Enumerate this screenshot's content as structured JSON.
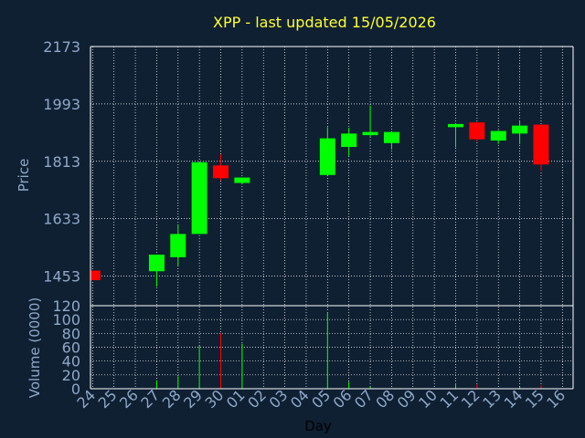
{
  "chart_data": {
    "type": "candlestick",
    "title": "XPP - last updated 15/05/2026",
    "xlabel": "Day",
    "ylabel": "Price",
    "volume_label": "Volume (0000)",
    "categories": [
      "24",
      "25",
      "26",
      "27",
      "28",
      "29",
      "30",
      "01",
      "02",
      "03",
      "04",
      "05",
      "06",
      "07",
      "08",
      "09",
      "10",
      "11",
      "12",
      "13",
      "14",
      "15",
      "16"
    ],
    "price_ticks": [
      "2173",
      "1993",
      "1813",
      "1633",
      "1453"
    ],
    "price_tick_values": [
      2173,
      1993,
      1813,
      1633,
      1453
    ],
    "volume_ticks": [
      "120",
      "100",
      "80",
      "60",
      "40",
      "20",
      "0"
    ],
    "volume_tick_values": [
      120,
      100,
      80,
      60,
      40,
      20,
      0
    ],
    "price_range": [
      1360,
      2173
    ],
    "volume_range": [
      0,
      120
    ],
    "grid": true,
    "colors": {
      "up": "#00ff00",
      "down": "#ff0000",
      "background": "#0f2033",
      "grid": "#ffffff",
      "axis_text": "#8fa8c8",
      "title": "#ffff33"
    },
    "candles": [
      {
        "day": "24",
        "open": 1470,
        "high": 1470,
        "low": 1440,
        "close": 1440
      },
      {
        "day": "27",
        "open": 1468,
        "high": 1520,
        "low": 1420,
        "close": 1520
      },
      {
        "day": "28",
        "open": 1512,
        "high": 1615,
        "low": 1485,
        "close": 1585
      },
      {
        "day": "29",
        "open": 1585,
        "high": 1810,
        "low": 1585,
        "close": 1810
      },
      {
        "day": "30",
        "open": 1800,
        "high": 1835,
        "low": 1753,
        "close": 1760
      },
      {
        "day": "01",
        "open": 1745,
        "high": 1760,
        "low": 1742,
        "close": 1762
      },
      {
        "day": "05",
        "open": 1770,
        "high": 1920,
        "low": 1770,
        "close": 1885
      },
      {
        "day": "06",
        "open": 1858,
        "high": 1918,
        "low": 1828,
        "close": 1900
      },
      {
        "day": "07",
        "open": 1895,
        "high": 1988,
        "low": 1890,
        "close": 1905
      },
      {
        "day": "08",
        "open": 1870,
        "high": 1908,
        "low": 1850,
        "close": 1905
      },
      {
        "day": "11",
        "open": 1920,
        "high": 1933,
        "low": 1857,
        "close": 1930
      },
      {
        "day": "12",
        "open": 1935,
        "high": 1935,
        "low": 1875,
        "close": 1882
      },
      {
        "day": "13",
        "open": 1878,
        "high": 1910,
        "low": 1868,
        "close": 1908
      },
      {
        "day": "14",
        "open": 1900,
        "high": 1938,
        "low": 1867,
        "close": 1925
      },
      {
        "day": "15",
        "open": 1928,
        "high": 1928,
        "low": 1783,
        "close": 1803
      }
    ],
    "volumes": [
      {
        "day": "27",
        "value": 12,
        "dir": "up"
      },
      {
        "day": "28",
        "value": 18,
        "dir": "up"
      },
      {
        "day": "29",
        "value": 62,
        "dir": "up"
      },
      {
        "day": "30",
        "value": 80,
        "dir": "down"
      },
      {
        "day": "01",
        "value": 65,
        "dir": "up"
      },
      {
        "day": "05",
        "value": 110,
        "dir": "up"
      },
      {
        "day": "06",
        "value": 10,
        "dir": "up"
      },
      {
        "day": "07",
        "value": 3,
        "dir": "up"
      },
      {
        "day": "11",
        "value": 8,
        "dir": "up"
      },
      {
        "day": "12",
        "value": 6,
        "dir": "down"
      },
      {
        "day": "14",
        "value": 3,
        "dir": "up"
      },
      {
        "day": "15",
        "value": 5,
        "dir": "down"
      }
    ]
  }
}
